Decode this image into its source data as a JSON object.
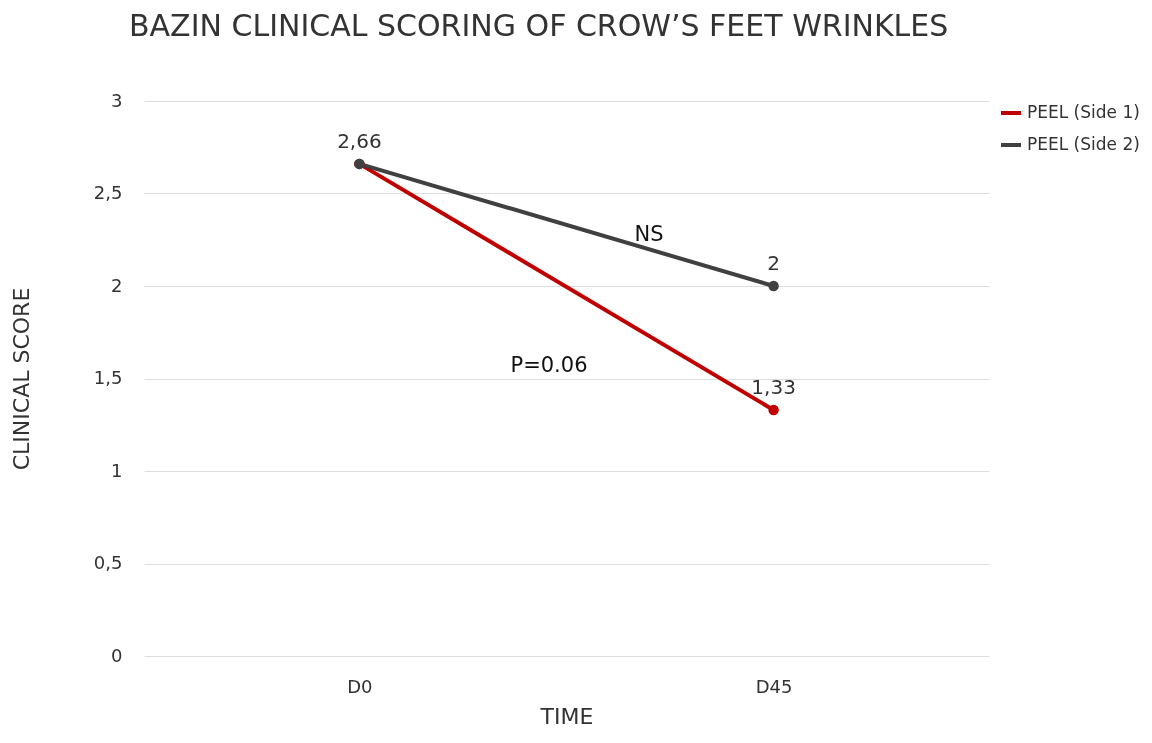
{
  "chart_data": {
    "type": "line",
    "title": "BAZIN CLINICAL SCORING OF CROW’S FEET WRINKLES",
    "xlabel": "TIME",
    "ylabel": "CLINICAL SCORE",
    "categories": [
      "D0",
      "D45"
    ],
    "series": [
      {
        "name": "PEEL (Side 1)",
        "color": "#c00000",
        "values": [
          2.66,
          1.33
        ],
        "value_labels": [
          null,
          "1,33"
        ]
      },
      {
        "name": "PEEL (Side 2)",
        "color": "#404040",
        "values": [
          2.66,
          2
        ],
        "value_labels": [
          "2,66",
          "2"
        ]
      }
    ],
    "ylim": [
      0,
      3
    ],
    "yticks": [
      0,
      {
        "value": 0.5,
        "label": "0,5"
      },
      1,
      {
        "value": 1.5,
        "label": "1,5"
      },
      2,
      {
        "value": 2.5,
        "label": "2,5"
      },
      3
    ],
    "annotations": [
      "NS",
      "P=0.06"
    ],
    "grid": "y",
    "legend": "right",
    "marker": "circle"
  }
}
